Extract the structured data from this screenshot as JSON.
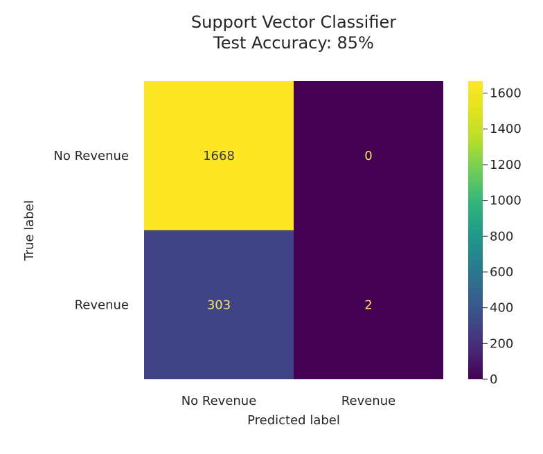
{
  "chart_data": {
    "type": "heatmap",
    "title_lines": [
      "Support Vector Classifier",
      "Test Accuracy: 85%"
    ],
    "xlabel": "Predicted label",
    "ylabel": "True label",
    "x_categories": [
      "No Revenue",
      "Revenue"
    ],
    "y_categories": [
      "No Revenue",
      "Revenue"
    ],
    "values": [
      [
        1668,
        0
      ],
      [
        303,
        2
      ]
    ],
    "colormap": "viridis",
    "colorbar": {
      "range": [
        0,
        1668
      ],
      "ticks": [
        0,
        200,
        400,
        600,
        800,
        1000,
        1200,
        1400,
        1600
      ]
    },
    "grid": false
  }
}
